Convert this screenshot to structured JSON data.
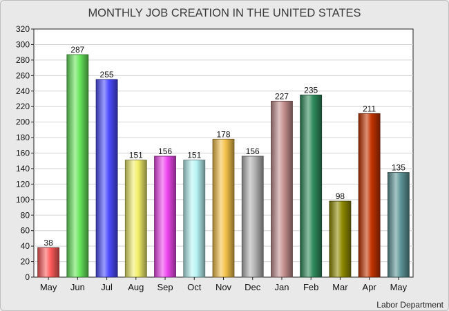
{
  "chart_data": {
    "type": "bar",
    "title": "MONTHLY JOB CREATION IN THE UNITED STATES",
    "source": "Labor Department",
    "categories": [
      "May",
      "Jun",
      "Jul",
      "Aug",
      "Sep",
      "Oct",
      "Nov",
      "Dec",
      "Jan",
      "Feb",
      "Mar",
      "Apr",
      "May"
    ],
    "values": [
      38,
      287,
      255,
      151,
      156,
      151,
      178,
      156,
      227,
      235,
      98,
      211,
      135
    ],
    "data_labels": [
      "38",
      "287",
      "255",
      "151",
      "156",
      "151",
      "178",
      "156",
      "227",
      "235",
      "98",
      "211",
      "135"
    ],
    "colors": [
      "#ff5a5a",
      "#66e65a",
      "#4b4bff",
      "#f2ef6a",
      "#f046f0",
      "#b8f4f6",
      "#f4c24a",
      "#b3b3b3",
      "#c48e8e",
      "#2f8c5c",
      "#8f8a00",
      "#c23300",
      "#5d9598"
    ],
    "ylim": [
      0,
      320
    ],
    "yticks": [
      0,
      20,
      40,
      60,
      80,
      100,
      120,
      140,
      160,
      180,
      200,
      220,
      240,
      260,
      280,
      300,
      320
    ],
    "ytick_labels": [
      "0",
      "20",
      "40",
      "60",
      "80",
      "100",
      "120",
      "140",
      "160",
      "180",
      "200",
      "220",
      "240",
      "260",
      "280",
      "300",
      "320"
    ],
    "grid": true,
    "xlabel": "",
    "ylabel": ""
  }
}
